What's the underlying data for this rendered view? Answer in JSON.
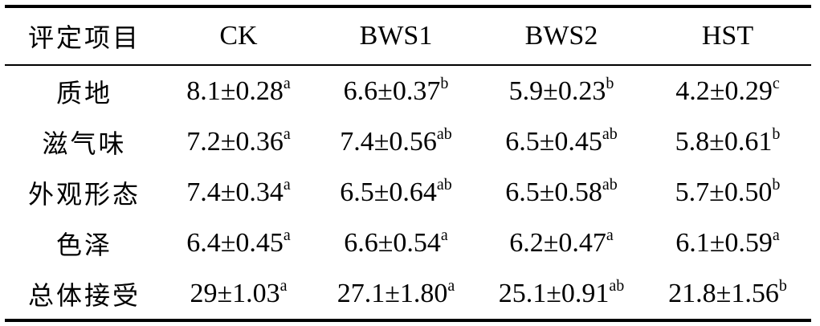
{
  "table": {
    "headers": [
      "评定项目",
      "CK",
      "BWS1",
      "BWS2",
      "HST"
    ],
    "rows": [
      {
        "label": "质地",
        "cells": [
          {
            "value": "8.1±0.28",
            "sig": "a"
          },
          {
            "value": "6.6±0.37",
            "sig": "b"
          },
          {
            "value": "5.9±0.23",
            "sig": "b"
          },
          {
            "value": "4.2±0.29",
            "sig": "c"
          }
        ]
      },
      {
        "label": "滋气味",
        "cells": [
          {
            "value": "7.2±0.36",
            "sig": "a"
          },
          {
            "value": "7.4±0.56",
            "sig": "ab"
          },
          {
            "value": "6.5±0.45",
            "sig": "ab"
          },
          {
            "value": "5.8±0.61",
            "sig": "b"
          }
        ]
      },
      {
        "label": "外观形态",
        "cells": [
          {
            "value": "7.4±0.34",
            "sig": "a"
          },
          {
            "value": "6.5±0.64",
            "sig": "ab"
          },
          {
            "value": "6.5±0.58",
            "sig": "ab"
          },
          {
            "value": "5.7±0.50",
            "sig": "b"
          }
        ]
      },
      {
        "label": "色泽",
        "cells": [
          {
            "value": "6.4±0.45",
            "sig": "a"
          },
          {
            "value": "6.6±0.54",
            "sig": "a"
          },
          {
            "value": "6.2±0.47",
            "sig": "a"
          },
          {
            "value": "6.1±0.59",
            "sig": "a"
          }
        ]
      },
      {
        "label": "总体接受",
        "cells": [
          {
            "value": "29±1.03",
            "sig": "a"
          },
          {
            "value": "27.1±1.80",
            "sig": "a"
          },
          {
            "value": "25.1±0.91",
            "sig": "ab"
          },
          {
            "value": "21.8±1.56",
            "sig": "b"
          }
        ]
      }
    ]
  }
}
